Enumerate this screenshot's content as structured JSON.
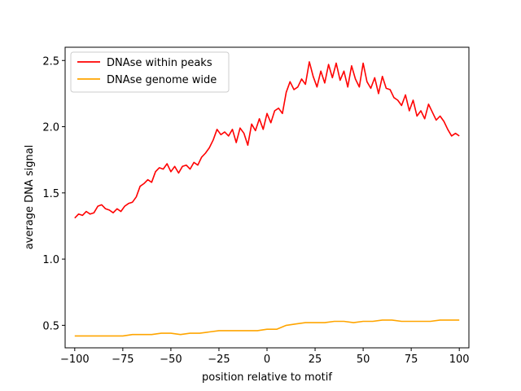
{
  "chart_data": {
    "type": "line",
    "xlabel": "position relative to motif",
    "ylabel": "average DNA signal",
    "xlim": [
      -105,
      105
    ],
    "ylim": [
      0.33,
      2.6
    ],
    "xticks": [
      -100,
      -75,
      -50,
      -25,
      0,
      25,
      50,
      75,
      100
    ],
    "xtick_labels": [
      "−100",
      "−75",
      "−50",
      "−25",
      "0",
      "25",
      "50",
      "75",
      "100"
    ],
    "yticks": [
      0.5,
      1.0,
      1.5,
      2.0,
      2.5
    ],
    "ytick_labels": [
      "0.5",
      "1.0",
      "1.5",
      "2.0",
      "2.5"
    ],
    "grid": false,
    "legend_position": "top-left",
    "series": [
      {
        "name": "DNAse within peaks",
        "color": "#ff0000",
        "x": [
          -100,
          -98,
          -96,
          -94,
          -92,
          -90,
          -88,
          -86,
          -84,
          -82,
          -80,
          -78,
          -76,
          -74,
          -72,
          -70,
          -68,
          -66,
          -64,
          -62,
          -60,
          -58,
          -56,
          -54,
          -52,
          -50,
          -48,
          -46,
          -44,
          -42,
          -40,
          -38,
          -36,
          -34,
          -32,
          -30,
          -28,
          -26,
          -24,
          -22,
          -20,
          -18,
          -16,
          -14,
          -12,
          -10,
          -8,
          -6,
          -4,
          -2,
          0,
          2,
          4,
          6,
          8,
          10,
          12,
          14,
          16,
          18,
          20,
          22,
          24,
          26,
          28,
          30,
          32,
          34,
          36,
          38,
          40,
          42,
          44,
          46,
          48,
          50,
          52,
          54,
          56,
          58,
          60,
          62,
          64,
          66,
          68,
          70,
          72,
          74,
          76,
          78,
          80,
          82,
          84,
          86,
          88,
          90,
          92,
          94,
          96,
          98,
          100
        ],
        "values": [
          1.31,
          1.34,
          1.33,
          1.36,
          1.34,
          1.35,
          1.4,
          1.41,
          1.38,
          1.37,
          1.35,
          1.38,
          1.36,
          1.4,
          1.42,
          1.43,
          1.47,
          1.55,
          1.57,
          1.6,
          1.58,
          1.66,
          1.69,
          1.68,
          1.72,
          1.66,
          1.7,
          1.65,
          1.7,
          1.71,
          1.68,
          1.73,
          1.71,
          1.77,
          1.8,
          1.84,
          1.9,
          1.98,
          1.94,
          1.96,
          1.93,
          1.98,
          1.88,
          1.99,
          1.95,
          1.86,
          2.02,
          1.97,
          2.06,
          1.98,
          2.1,
          2.03,
          2.12,
          2.14,
          2.1,
          2.26,
          2.34,
          2.28,
          2.3,
          2.36,
          2.32,
          2.49,
          2.38,
          2.3,
          2.42,
          2.33,
          2.47,
          2.37,
          2.48,
          2.35,
          2.42,
          2.3,
          2.46,
          2.36,
          2.3,
          2.48,
          2.34,
          2.29,
          2.37,
          2.25,
          2.38,
          2.29,
          2.28,
          2.22,
          2.2,
          2.16,
          2.24,
          2.12,
          2.2,
          2.08,
          2.12,
          2.06,
          2.17,
          2.11,
          2.05,
          2.08,
          2.04,
          1.98,
          1.93,
          1.95,
          1.93
        ]
      },
      {
        "name": "DNAse genome wide",
        "color": "#ffa500",
        "x": [
          -100,
          -95,
          -90,
          -85,
          -80,
          -75,
          -70,
          -65,
          -60,
          -55,
          -50,
          -45,
          -40,
          -35,
          -30,
          -25,
          -20,
          -15,
          -10,
          -5,
          0,
          5,
          10,
          15,
          20,
          25,
          30,
          35,
          40,
          45,
          50,
          55,
          60,
          65,
          70,
          75,
          80,
          85,
          90,
          95,
          100
        ],
        "values": [
          0.42,
          0.42,
          0.42,
          0.42,
          0.42,
          0.42,
          0.43,
          0.43,
          0.43,
          0.44,
          0.44,
          0.43,
          0.44,
          0.44,
          0.45,
          0.46,
          0.46,
          0.46,
          0.46,
          0.46,
          0.47,
          0.47,
          0.5,
          0.51,
          0.52,
          0.52,
          0.52,
          0.53,
          0.53,
          0.52,
          0.53,
          0.53,
          0.54,
          0.54,
          0.53,
          0.53,
          0.53,
          0.53,
          0.54,
          0.54,
          0.54
        ]
      }
    ]
  }
}
